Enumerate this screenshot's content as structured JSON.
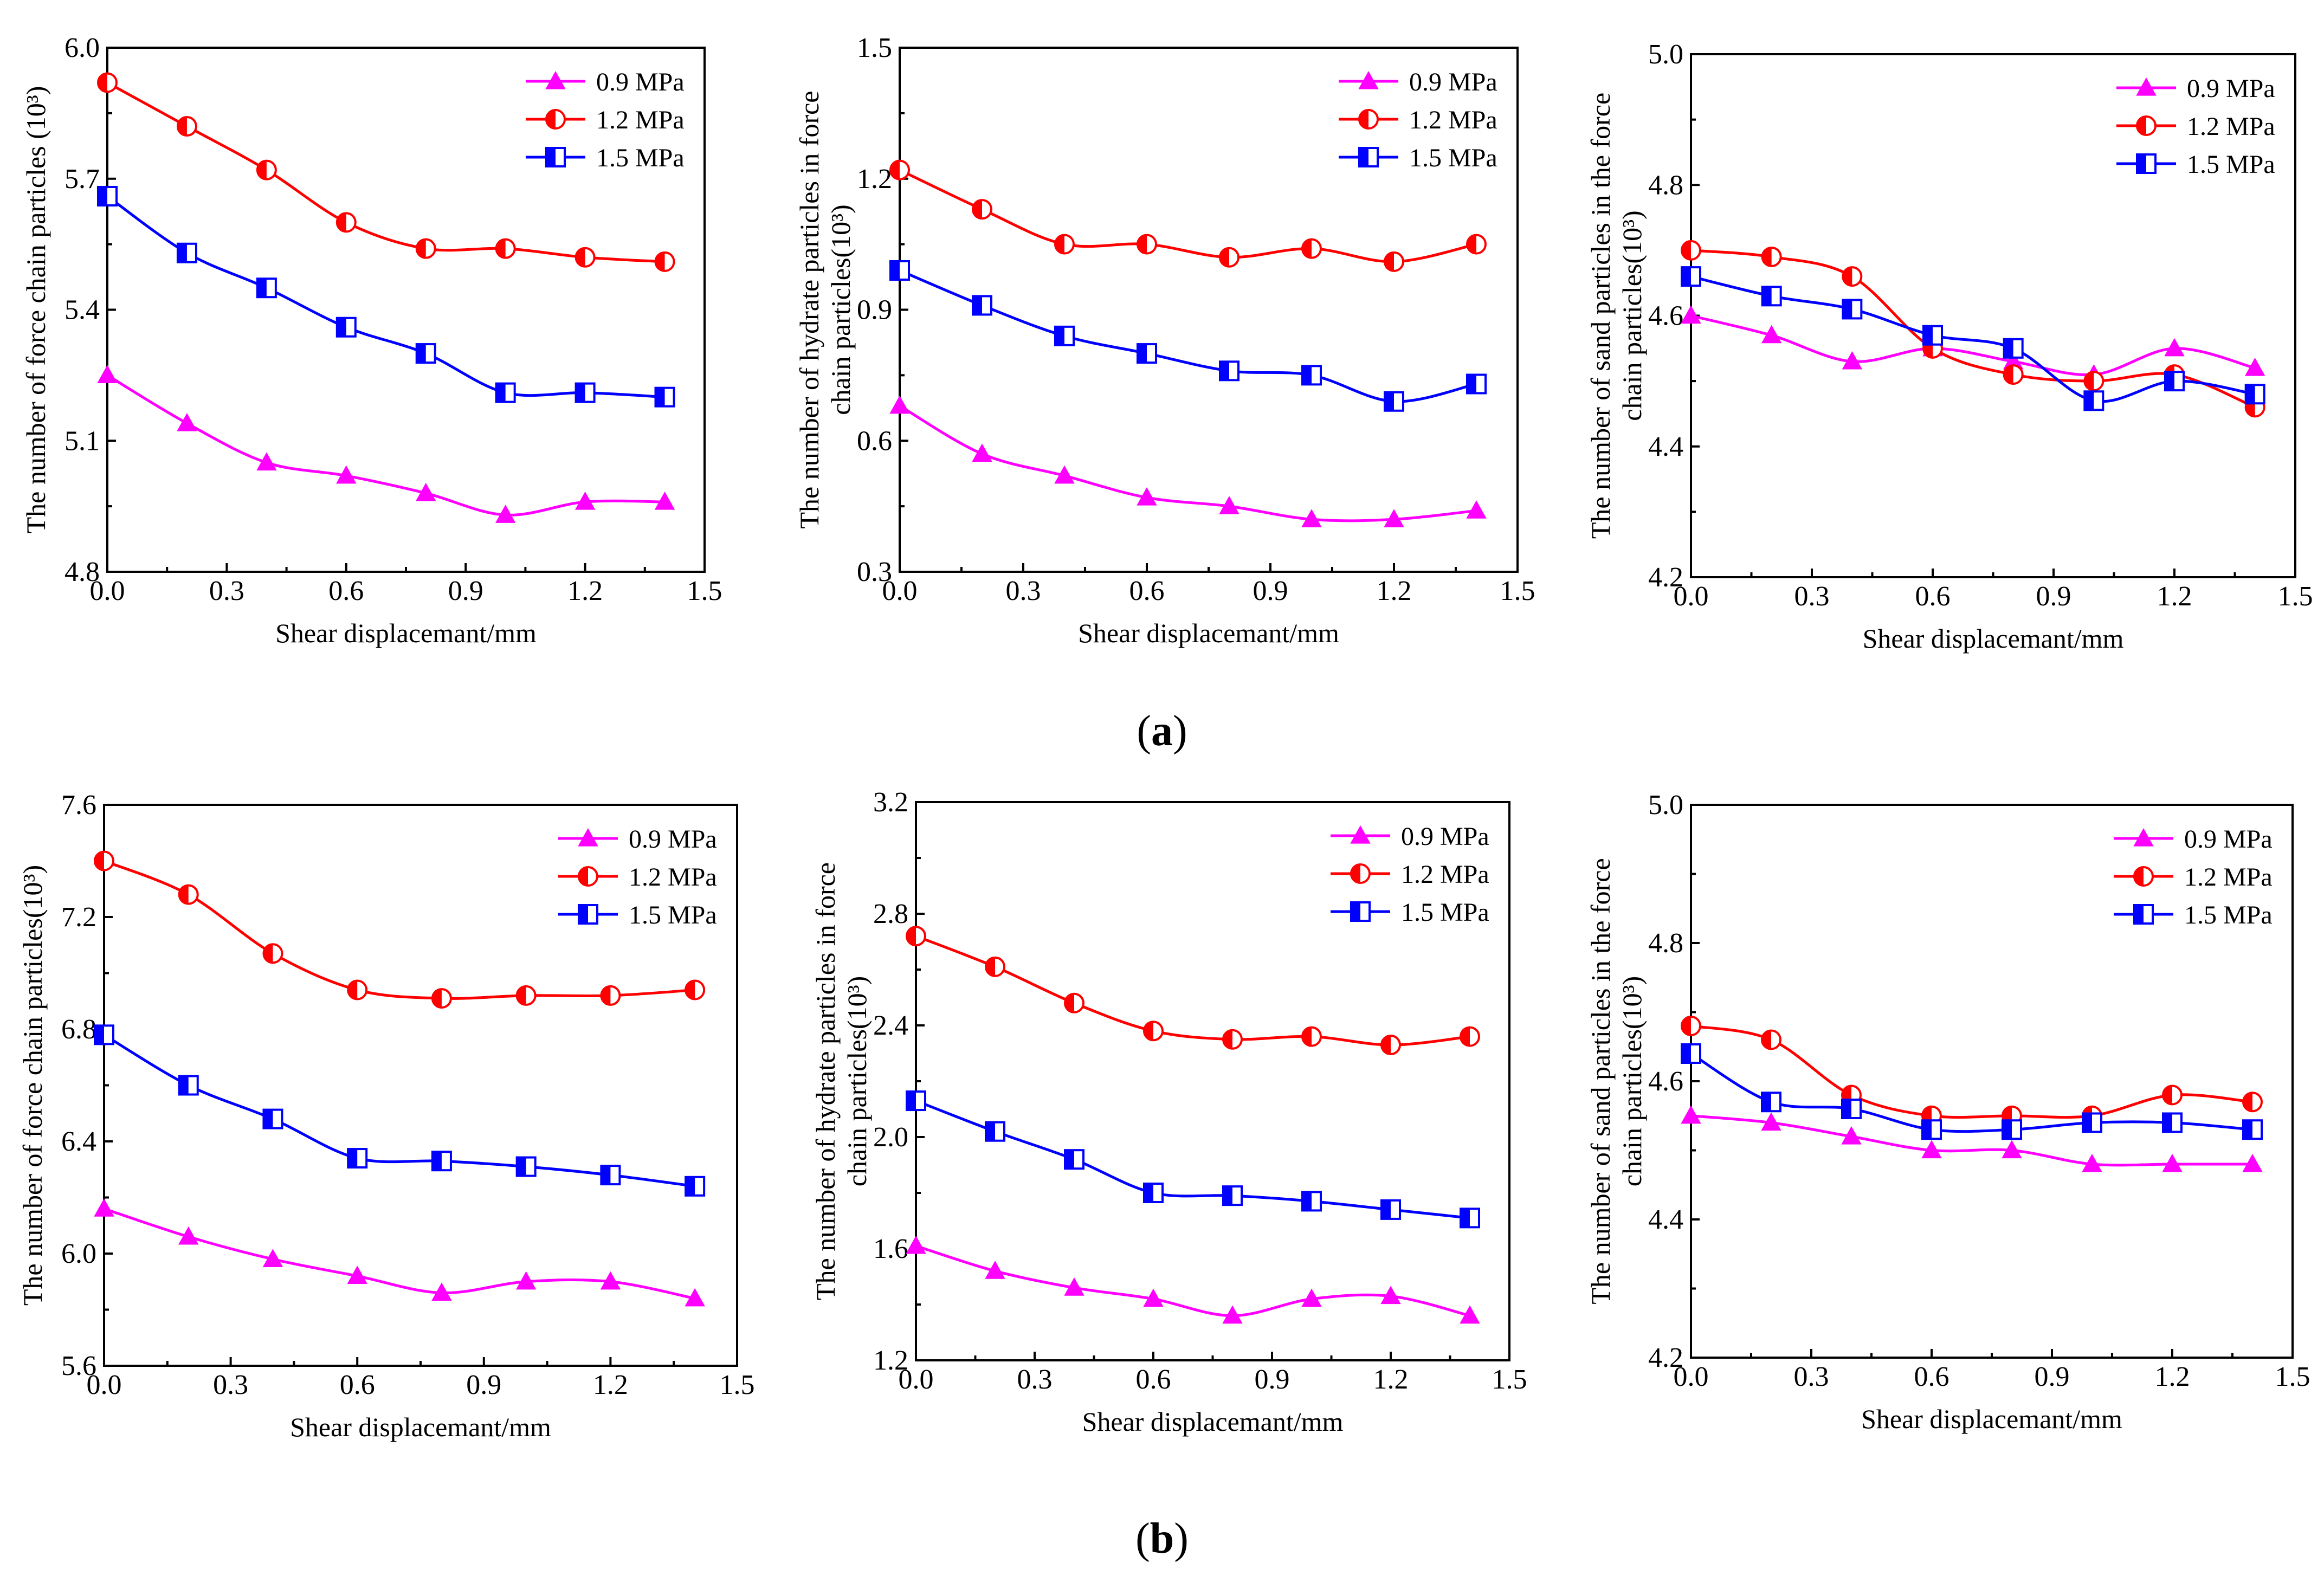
{
  "figure": {
    "panel_labels": [
      {
        "open": "(",
        "letter": "a",
        "close": ")"
      },
      {
        "open": "(",
        "letter": "b",
        "close": ")"
      }
    ],
    "colors": {
      "0.9 MPa": "#ff00ff",
      "1.2 MPa": "#ff0000",
      "1.5 MPa": "#0000ff"
    }
  },
  "chart_data": [
    {
      "type": "line",
      "panel": "a",
      "position": "left",
      "xlabel": "Shear displacemant/mm",
      "ylabel_lines": [
        "The  number of force chain particles  (10³)"
      ],
      "xlim": [
        0,
        1.5
      ],
      "ylim": [
        4.8,
        6.0
      ],
      "xticks": [
        "0.0",
        "0.3",
        "0.6",
        "0.9",
        "1.2",
        "1.5"
      ],
      "yticks": [
        "4.8",
        "5.1",
        "5.4",
        "5.7",
        "6.0"
      ],
      "x": [
        0,
        0.2,
        0.4,
        0.6,
        0.8,
        1.0,
        1.2,
        1.4
      ],
      "series": [
        {
          "name": "0.9 MPa",
          "marker": "triangle",
          "values": [
            5.25,
            5.14,
            5.05,
            5.02,
            4.98,
            4.93,
            4.96,
            4.96
          ]
        },
        {
          "name": "1.2 MPa",
          "marker": "circle",
          "values": [
            5.92,
            5.82,
            5.72,
            5.6,
            5.54,
            5.54,
            5.52,
            5.51
          ]
        },
        {
          "name": "1.5 MPa",
          "marker": "square",
          "values": [
            5.66,
            5.53,
            5.45,
            5.36,
            5.3,
            5.21,
            5.21,
            5.2
          ]
        }
      ]
    },
    {
      "type": "line",
      "panel": "a",
      "position": "middle",
      "xlabel": "Shear displacemant/mm",
      "ylabel_lines": [
        "The number of hydrate particles in force",
        "chain particles(10³)"
      ],
      "xlim": [
        0,
        1.5
      ],
      "ylim": [
        0.3,
        1.5
      ],
      "xticks": [
        "0.0",
        "0.3",
        "0.6",
        "0.9",
        "1.2",
        "1.5"
      ],
      "yticks": [
        "0.3",
        "0.6",
        "0.9",
        "1.2",
        "1.5"
      ],
      "x": [
        0,
        0.2,
        0.4,
        0.6,
        0.8,
        1.0,
        1.2,
        1.4
      ],
      "series": [
        {
          "name": "0.9 MPa",
          "marker": "triangle",
          "values": [
            0.68,
            0.57,
            0.52,
            0.47,
            0.45,
            0.42,
            0.42,
            0.44
          ]
        },
        {
          "name": "1.2 MPa",
          "marker": "circle",
          "values": [
            1.22,
            1.13,
            1.05,
            1.05,
            1.02,
            1.04,
            1.01,
            1.05
          ]
        },
        {
          "name": "1.5 MPa",
          "marker": "square",
          "values": [
            0.99,
            0.91,
            0.84,
            0.8,
            0.76,
            0.75,
            0.69,
            0.73
          ]
        }
      ]
    },
    {
      "type": "line",
      "panel": "a",
      "position": "right",
      "xlabel": "Shear displacemant/mm",
      "ylabel_lines": [
        "The number of sand particles in the force",
        "chain particles(10³)"
      ],
      "xlim": [
        0,
        1.5
      ],
      "ylim": [
        4.2,
        5.0
      ],
      "xticks": [
        "0.0",
        "0.3",
        "0.6",
        "0.9",
        "1.2",
        "1.5"
      ],
      "yticks": [
        "4.2",
        "4.4",
        "4.6",
        "4.8",
        "5.0"
      ],
      "x": [
        0,
        0.2,
        0.4,
        0.6,
        0.8,
        1.0,
        1.2,
        1.4
      ],
      "series": [
        {
          "name": "0.9 MPa",
          "marker": "triangle",
          "values": [
            4.6,
            4.57,
            4.53,
            4.55,
            4.53,
            4.51,
            4.55,
            4.52
          ]
        },
        {
          "name": "1.2 MPa",
          "marker": "circle",
          "values": [
            4.7,
            4.69,
            4.66,
            4.55,
            4.51,
            4.5,
            4.51,
            4.46
          ]
        },
        {
          "name": "1.5 MPa",
          "marker": "square",
          "values": [
            4.66,
            4.63,
            4.61,
            4.57,
            4.55,
            4.47,
            4.5,
            4.48
          ]
        }
      ]
    },
    {
      "type": "line",
      "panel": "b",
      "position": "left",
      "xlabel": "Shear displacemant/mm",
      "ylabel_lines": [
        "The number of force chain particles(10³)"
      ],
      "xlim": [
        0,
        1.5
      ],
      "ylim": [
        5.6,
        7.6
      ],
      "xticks": [
        "0.0",
        "0.3",
        "0.6",
        "0.9",
        "1.2",
        "1.5"
      ],
      "yticks": [
        "5.6",
        "6.0",
        "6.4",
        "6.8",
        "7.2",
        "7.6"
      ],
      "x": [
        0,
        0.2,
        0.4,
        0.6,
        0.8,
        1.0,
        1.2,
        1.4
      ],
      "series": [
        {
          "name": "0.9 MPa",
          "marker": "triangle",
          "values": [
            6.16,
            6.06,
            5.98,
            5.92,
            5.86,
            5.9,
            5.9,
            5.84
          ]
        },
        {
          "name": "1.2 MPa",
          "marker": "circle",
          "values": [
            7.4,
            7.28,
            7.07,
            6.94,
            6.91,
            6.92,
            6.92,
            6.94
          ]
        },
        {
          "name": "1.5 MPa",
          "marker": "square",
          "values": [
            6.78,
            6.6,
            6.48,
            6.34,
            6.33,
            6.31,
            6.28,
            6.24
          ]
        }
      ]
    },
    {
      "type": "line",
      "panel": "b",
      "position": "middle",
      "xlabel": "Shear displacemant/mm",
      "ylabel_lines": [
        "The number of hydrate particles in force",
        "chain particles(10³)"
      ],
      "xlim": [
        0,
        1.5
      ],
      "ylim": [
        1.2,
        3.2
      ],
      "xticks": [
        "0.0",
        "0.3",
        "0.6",
        "0.9",
        "1.2",
        "1.5"
      ],
      "yticks": [
        "1.2",
        "1.6",
        "2.0",
        "2.4",
        "2.8",
        "3.2"
      ],
      "x": [
        0,
        0.2,
        0.4,
        0.6,
        0.8,
        1.0,
        1.2,
        1.4
      ],
      "series": [
        {
          "name": "0.9 MPa",
          "marker": "triangle",
          "values": [
            1.61,
            1.52,
            1.46,
            1.42,
            1.36,
            1.42,
            1.43,
            1.36
          ]
        },
        {
          "name": "1.2 MPa",
          "marker": "circle",
          "values": [
            2.72,
            2.61,
            2.48,
            2.38,
            2.35,
            2.36,
            2.33,
            2.36
          ]
        },
        {
          "name": "1.5 MPa",
          "marker": "square",
          "values": [
            2.13,
            2.02,
            1.92,
            1.8,
            1.79,
            1.77,
            1.74,
            1.71
          ]
        }
      ]
    },
    {
      "type": "line",
      "panel": "b",
      "position": "right",
      "xlabel": "Shear displacemant/mm",
      "ylabel_lines": [
        "The number of sand particles in the force",
        "chain particles(10³)"
      ],
      "xlim": [
        0,
        1.5
      ],
      "ylim": [
        4.2,
        5.0
      ],
      "xticks": [
        "0.0",
        "0.3",
        "0.6",
        "0.9",
        "1.2",
        "1.5"
      ],
      "yticks": [
        "4.2",
        "4.4",
        "4.6",
        "4.8",
        "5.0"
      ],
      "x": [
        0,
        0.2,
        0.4,
        0.6,
        0.8,
        1.0,
        1.2,
        1.4
      ],
      "series": [
        {
          "name": "0.9 MPa",
          "marker": "triangle",
          "values": [
            4.55,
            4.54,
            4.52,
            4.5,
            4.5,
            4.48,
            4.48,
            4.48
          ]
        },
        {
          "name": "1.2 MPa",
          "marker": "circle",
          "values": [
            4.68,
            4.66,
            4.58,
            4.55,
            4.55,
            4.55,
            4.58,
            4.57
          ]
        },
        {
          "name": "1.5 MPa",
          "marker": "square",
          "values": [
            4.64,
            4.57,
            4.56,
            4.53,
            4.53,
            4.54,
            4.54,
            4.53
          ]
        }
      ]
    }
  ]
}
